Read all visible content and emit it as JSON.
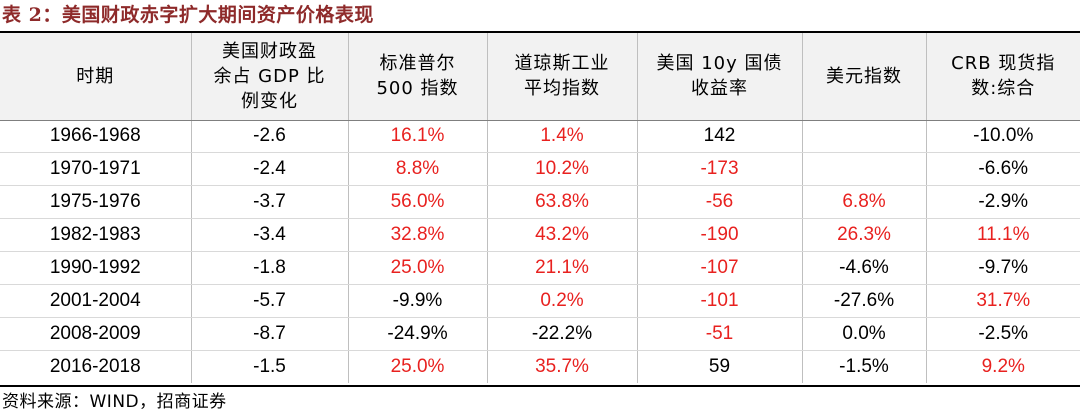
{
  "title": "表 2：美国财政赤字扩大期间资产价格表现",
  "colors": {
    "title": "#8e2a2a",
    "positive": "#e8211f",
    "negative": "#000000",
    "header_background": "#f2f2f2"
  },
  "table": {
    "headers": [
      [
        "时期"
      ],
      [
        "美国财政盈",
        "余占 GDP 比",
        "例变化"
      ],
      [
        "标准普尔",
        "500 指数"
      ],
      [
        "道琼斯工业",
        "平均指数"
      ],
      [
        "美国 10y 国债",
        "收益率"
      ],
      [
        "美元指数"
      ],
      [
        "CRB 现货指",
        "数:综合"
      ]
    ],
    "rows": [
      {
        "period": "1966-1968",
        "deficit": "-2.6",
        "sp500": "16.1%",
        "dow": "1.4%",
        "ust10y": "142",
        "usd": "",
        "crb": "-10.0%"
      },
      {
        "period": "1970-1971",
        "deficit": "-2.4",
        "sp500": "8.8%",
        "dow": "10.2%",
        "ust10y": "-173",
        "usd": "",
        "crb": "-6.6%"
      },
      {
        "period": "1975-1976",
        "deficit": "-3.7",
        "sp500": "56.0%",
        "dow": "63.8%",
        "ust10y": "-56",
        "usd": "6.8%",
        "crb": "-2.9%"
      },
      {
        "period": "1982-1983",
        "deficit": "-3.4",
        "sp500": "32.8%",
        "dow": "43.2%",
        "ust10y": "-190",
        "usd": "26.3%",
        "crb": "11.1%"
      },
      {
        "period": "1990-1992",
        "deficit": "-1.8",
        "sp500": "25.0%",
        "dow": "21.1%",
        "ust10y": "-107",
        "usd": "-4.6%",
        "crb": "-9.7%"
      },
      {
        "period": "2001-2004",
        "deficit": "-5.7",
        "sp500": "-9.9%",
        "dow": "0.2%",
        "ust10y": "-101",
        "usd": "-27.6%",
        "crb": "31.7%"
      },
      {
        "period": "2008-2009",
        "deficit": "-8.7",
        "sp500": "-24.9%",
        "dow": "-22.2%",
        "ust10y": "-51",
        "usd": "0.0%",
        "crb": "-2.5%"
      },
      {
        "period": "2016-2018",
        "deficit": "-1.5",
        "sp500": "25.0%",
        "dow": "35.7%",
        "ust10y": "59",
        "usd": "-1.5%",
        "crb": "9.2%"
      }
    ],
    "cell_tone": [
      [
        "neg",
        "pos",
        "pos",
        "neg",
        "neg",
        "neg"
      ],
      [
        "neg",
        "pos",
        "pos",
        "pos",
        "neg",
        "neg"
      ],
      [
        "neg",
        "pos",
        "pos",
        "pos",
        "pos",
        "neg"
      ],
      [
        "neg",
        "pos",
        "pos",
        "pos",
        "pos",
        "pos"
      ],
      [
        "neg",
        "pos",
        "pos",
        "pos",
        "neg",
        "neg"
      ],
      [
        "neg",
        "neg",
        "pos",
        "pos",
        "neg",
        "pos"
      ],
      [
        "neg",
        "neg",
        "neg",
        "pos",
        "neg",
        "neg"
      ],
      [
        "neg",
        "pos",
        "pos",
        "neg",
        "neg",
        "pos"
      ]
    ]
  },
  "source": "资料来源：WIND，招商证券"
}
